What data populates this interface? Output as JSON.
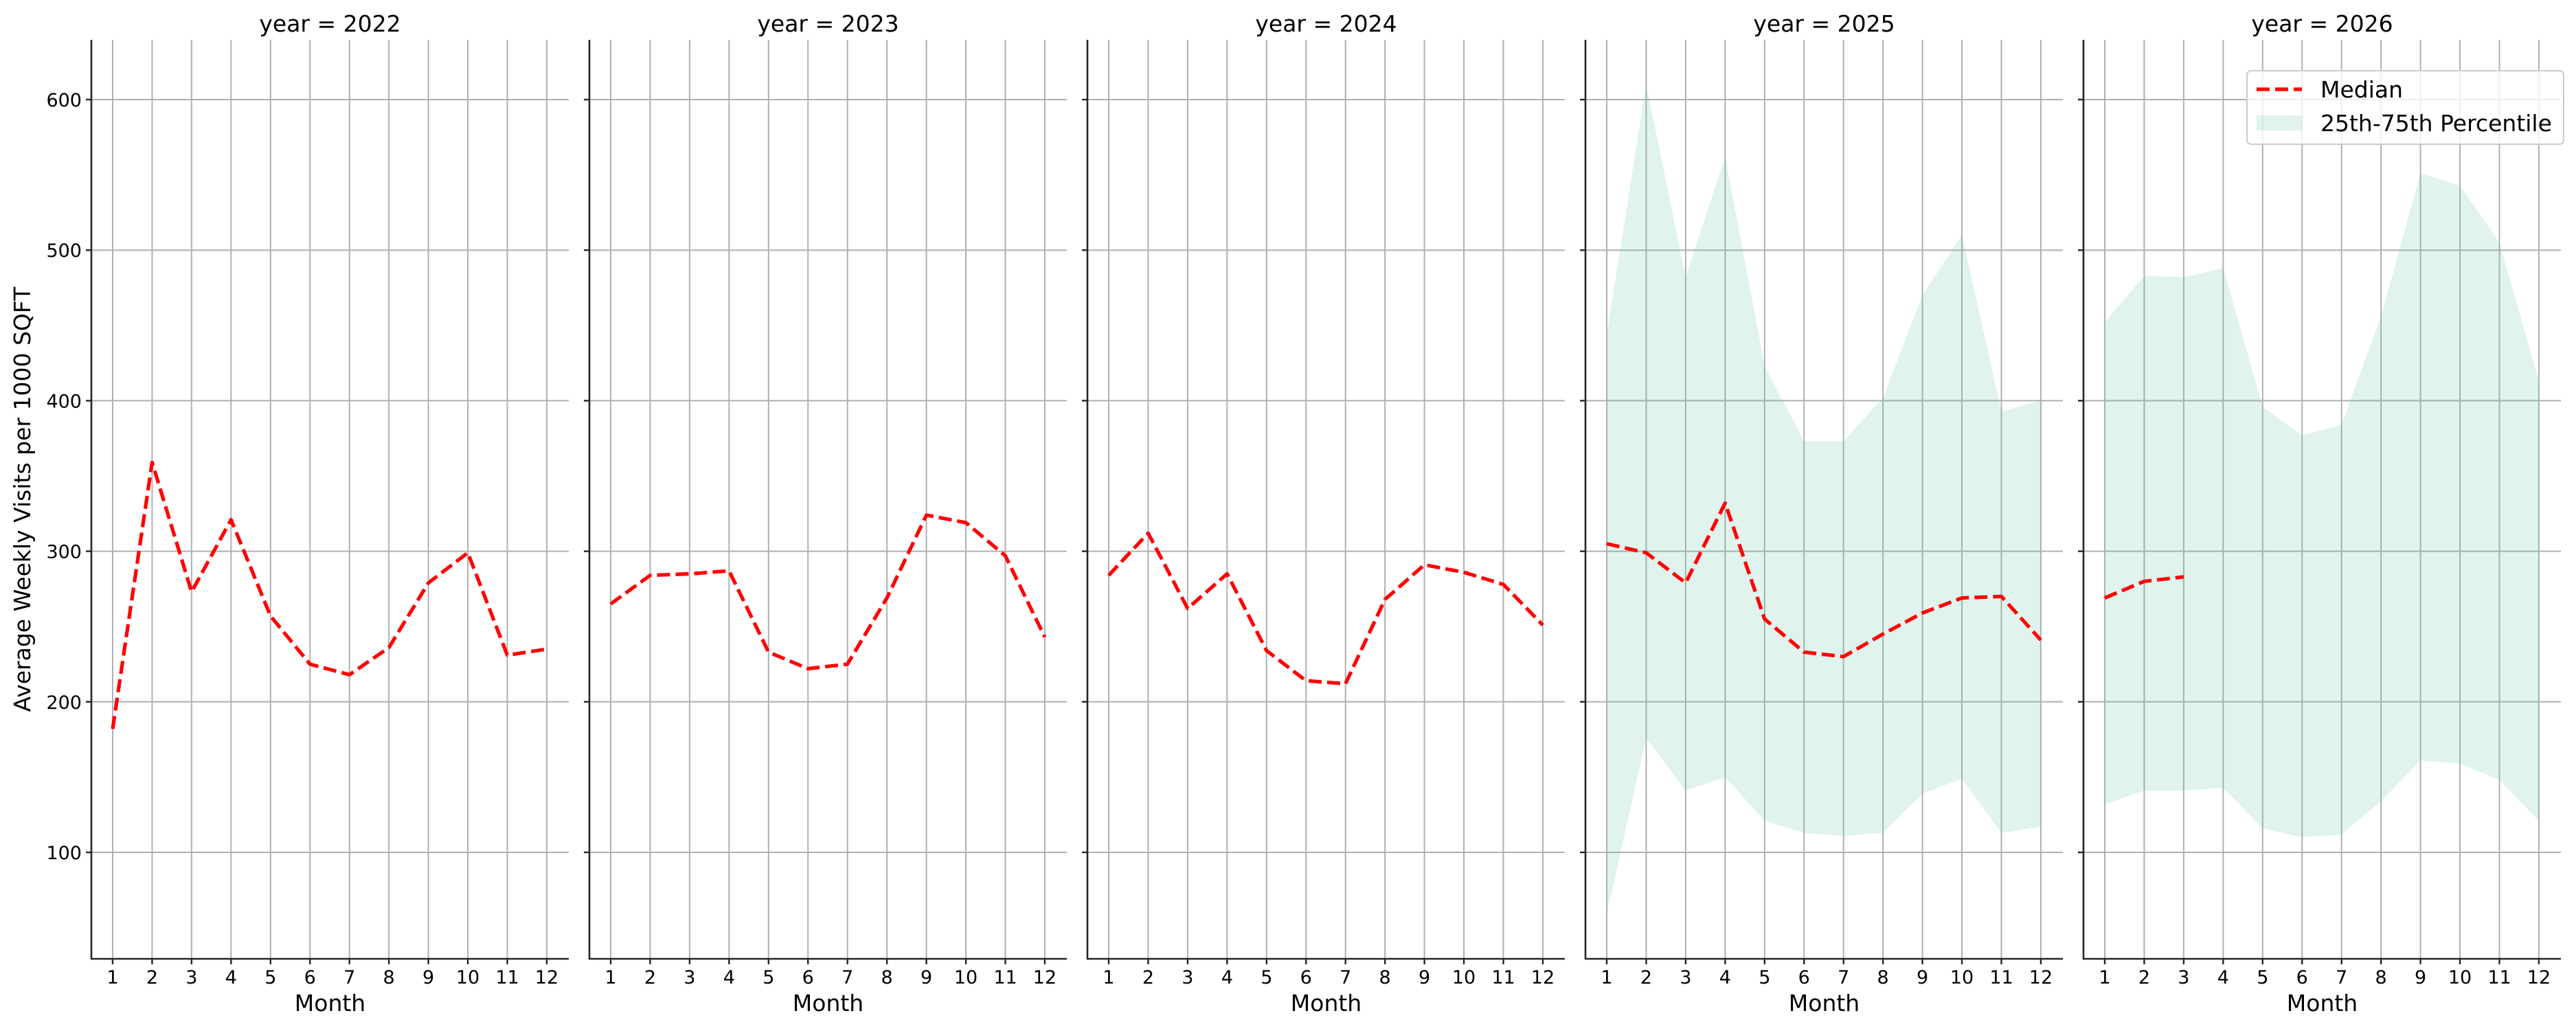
{
  "figure": {
    "ylabel": "Average Weekly Visits per 1000 SQFT",
    "xlabel": "Month",
    "legend": {
      "median_label": "Median",
      "band_label": "25th-75th Percentile"
    },
    "colors": {
      "median": "#ff0000",
      "band": "#66c2a5",
      "band_alpha": 0.2,
      "grid": "#b0b0b0",
      "spine": "#262626"
    }
  },
  "chart_data": {
    "type": "line",
    "title": "",
    "xlabel": "Month",
    "ylabel": "Average Weekly Visits per 1000 SQFT",
    "ylim": [
      29,
      640
    ],
    "yticks": [
      100,
      200,
      300,
      400,
      500,
      600
    ],
    "xticks": [
      1,
      2,
      3,
      4,
      5,
      6,
      7,
      8,
      9,
      10,
      11,
      12
    ],
    "grid": true,
    "legend_position": "upper right (last panel)",
    "legend": [
      "Median",
      "25th-75th Percentile"
    ],
    "facet": "year",
    "panels": [
      {
        "title": "year = 2022",
        "x": [
          1,
          2,
          3,
          4,
          5,
          6,
          7,
          8,
          9,
          10,
          11,
          12
        ],
        "median": [
          182,
          359,
          273,
          321,
          257,
          225,
          218,
          236,
          279,
          299,
          231,
          235
        ],
        "p25": null,
        "p75": null
      },
      {
        "title": "year = 2023",
        "x": [
          1,
          2,
          3,
          4,
          5,
          6,
          7,
          8,
          9,
          10,
          11,
          12
        ],
        "median": [
          265,
          284,
          285,
          287,
          233,
          222,
          225,
          269,
          324,
          319,
          297,
          243
        ],
        "p25": null,
        "p75": null
      },
      {
        "title": "year = 2024",
        "x": [
          1,
          2,
          3,
          4,
          5,
          6,
          7,
          8,
          9,
          10,
          11,
          12
        ],
        "median": [
          284,
          312,
          262,
          285,
          234,
          214,
          212,
          268,
          291,
          286,
          278,
          251
        ],
        "p25": null,
        "p75": null
      },
      {
        "title": "year = 2025",
        "x": [
          1,
          2,
          3,
          4,
          5,
          6,
          7,
          8,
          9,
          10,
          11,
          12
        ],
        "median": [
          305,
          299,
          279,
          332,
          255,
          233,
          230,
          245,
          259,
          269,
          270,
          241
        ],
        "p25": [
          59,
          176,
          141,
          150,
          121,
          113,
          111,
          113,
          139,
          149,
          113,
          117
        ],
        "p75": [
          444,
          610,
          482,
          562,
          423,
          373,
          373,
          402,
          470,
          510,
          393,
          400
        ]
      },
      {
        "title": "year = 2026",
        "x": [
          1,
          2,
          3,
          4,
          5,
          6,
          7,
          8,
          9,
          10,
          11,
          12
        ],
        "median": [
          269,
          280,
          283,
          null,
          null,
          null,
          null,
          null,
          null,
          null,
          null,
          null
        ],
        "p25": [
          132,
          141,
          141,
          143,
          116,
          110,
          112,
          134,
          161,
          159,
          148,
          121
        ],
        "p75": [
          452,
          483,
          482,
          488,
          396,
          377,
          384,
          456,
          551,
          543,
          505,
          413
        ]
      }
    ]
  }
}
